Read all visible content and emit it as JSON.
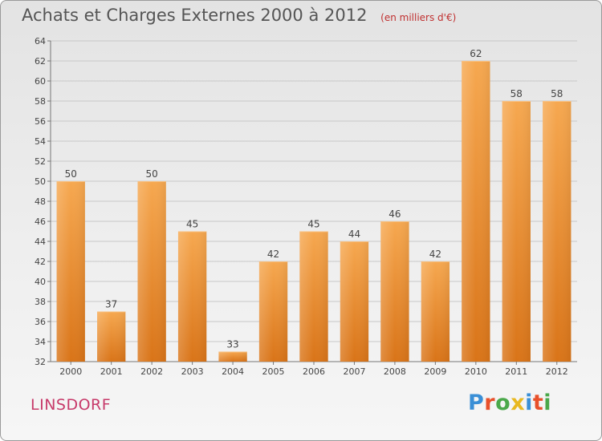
{
  "header": {
    "title": "Achats et Charges Externes 2000 à 2012",
    "unit": "(en milliers d'€)"
  },
  "footer": {
    "commune": "LINSDORF",
    "logo": {
      "text": "Proxiti",
      "letters": [
        {
          "ch": "P",
          "color": "#3a8fd6"
        },
        {
          "ch": "r",
          "color": "#e8502a"
        },
        {
          "ch": "o",
          "color": "#4aa84a"
        },
        {
          "ch": "x",
          "color": "#e8b820"
        },
        {
          "ch": "i",
          "color": "#3a8fd6"
        },
        {
          "ch": "t",
          "color": "#e8502a"
        },
        {
          "ch": "i",
          "color": "#4aa84a"
        }
      ]
    }
  },
  "colors": {
    "bar_top": "#f6a850",
    "bar_bottom": "#d97418",
    "label": "#444444",
    "axis": "#777777"
  },
  "chart_data": {
    "type": "bar",
    "title": "Achats et Charges Externes 2000 à 2012",
    "subtitle": "(en milliers d'€)",
    "categories": [
      "2000",
      "2001",
      "2002",
      "2003",
      "2004",
      "2005",
      "2006",
      "2007",
      "2008",
      "2009",
      "2010",
      "2011",
      "2012"
    ],
    "values": [
      50,
      37,
      50,
      45,
      33,
      42,
      45,
      44,
      46,
      42,
      62,
      58,
      58
    ],
    "ylim": [
      32,
      64
    ],
    "yticks": [
      32,
      34,
      36,
      38,
      40,
      42,
      44,
      46,
      48,
      50,
      52,
      54,
      56,
      58,
      60,
      62,
      64
    ],
    "grid": true,
    "data_labels": true
  }
}
